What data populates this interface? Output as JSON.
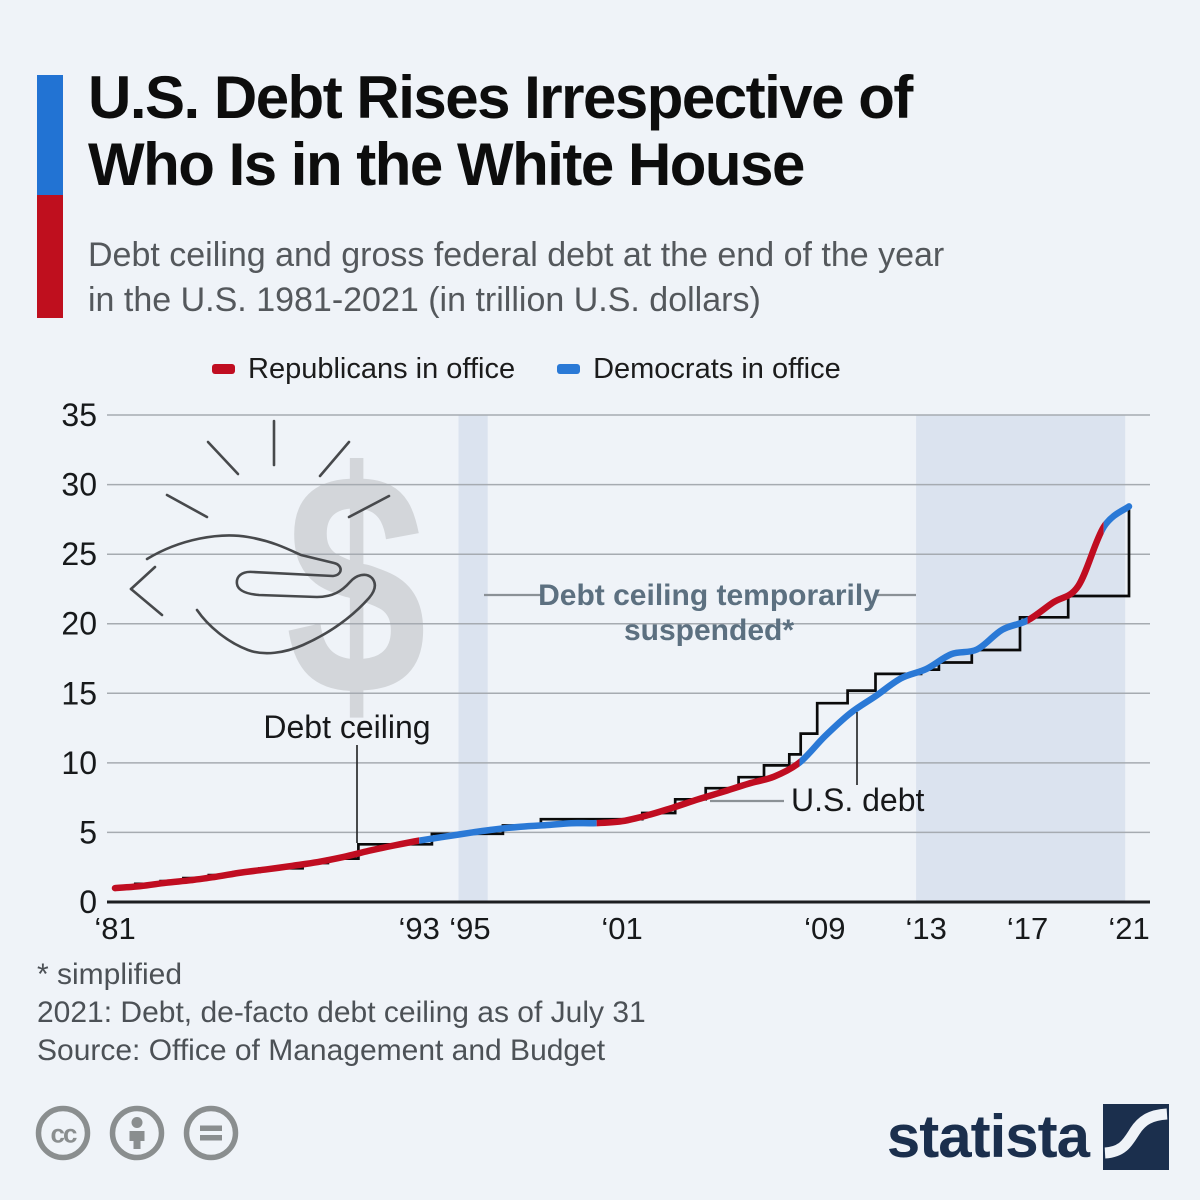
{
  "header": {
    "title_line1": "U.S. Debt Rises Irrespective of",
    "title_line2": "Who Is in the White House",
    "subtitle_line1": "Debt ceiling and gross federal debt at the end of the year",
    "subtitle_line2": "in the U.S. 1981-2021 (in trillion U.S. dollars)",
    "accent_blue": "#2273d3",
    "accent_red": "#bf0f1e"
  },
  "legend": {
    "items": [
      {
        "label": "Republicans in office",
        "color": "#c00d21"
      },
      {
        "label": "Democrats in office",
        "color": "#2a79d6"
      }
    ]
  },
  "chart_data": {
    "type": "line",
    "title": "Debt ceiling and gross federal debt at the end of the year in the U.S. 1981-2021",
    "unit": "trillion U.S. dollars",
    "ylim": [
      0,
      35
    ],
    "y_ticks": [
      0,
      5,
      10,
      15,
      20,
      25,
      30,
      35
    ],
    "x_ticks": [
      {
        "year": 1981,
        "label": "‘81"
      },
      {
        "year": 1993,
        "label": "‘93"
      },
      {
        "year": 1995,
        "label": "‘95"
      },
      {
        "year": 2001,
        "label": "‘01"
      },
      {
        "year": 2009,
        "label": "‘09"
      },
      {
        "year": 2013,
        "label": "‘13"
      },
      {
        "year": 2017,
        "label": "‘17"
      },
      {
        "year": 2021,
        "label": "‘21"
      }
    ],
    "grid": true,
    "colors": {
      "republican": "#c00d21",
      "democrat": "#2a79d6",
      "ceiling_line": "#0a0a0a",
      "band": "#dbe3ef",
      "gridline": "#a6abb1",
      "axis": "#1c1e21",
      "tick_label": "#17191b",
      "watermark": "#d3d6da",
      "icon_stroke": "#47494c",
      "leader_gray": "#8b9196",
      "leader_dark": "#2a2c2e",
      "suspended_label": "#5c7080"
    },
    "series": [
      {
        "name": "U.S. debt",
        "years": [
          1981,
          1982,
          1983,
          1984,
          1985,
          1986,
          1987,
          1988,
          1989,
          1990,
          1991,
          1992,
          1993,
          1994,
          1995,
          1996,
          1997,
          1998,
          1999,
          2000,
          2001,
          2002,
          2003,
          2004,
          2005,
          2006,
          2007,
          2008,
          2009,
          2010,
          2011,
          2012,
          2013,
          2014,
          2015,
          2016,
          2017,
          2018,
          2019,
          2020,
          2021
        ],
        "values": [
          1.0,
          1.14,
          1.38,
          1.57,
          1.82,
          2.12,
          2.35,
          2.6,
          2.87,
          3.23,
          3.67,
          4.06,
          4.41,
          4.69,
          4.97,
          5.22,
          5.41,
          5.53,
          5.66,
          5.67,
          5.81,
          6.23,
          6.78,
          7.38,
          7.93,
          8.51,
          9.01,
          10.02,
          11.91,
          13.56,
          14.79,
          16.07,
          16.74,
          17.82,
          18.15,
          19.57,
          20.24,
          21.52,
          22.72,
          26.95,
          28.43
        ]
      },
      {
        "name": "Debt ceiling",
        "style": "step",
        "steps": [
          [
            1981.0,
            1.08
          ],
          [
            1981.8,
            1.3
          ],
          [
            1982.8,
            1.5
          ],
          [
            1983.7,
            1.72
          ],
          [
            1984.7,
            1.93
          ],
          [
            1985.7,
            2.16
          ],
          [
            1986.7,
            2.42
          ],
          [
            1988.4,
            2.8
          ],
          [
            1989.4,
            3.12
          ],
          [
            1990.6,
            4.15
          ],
          [
            1993.5,
            4.9
          ],
          [
            1996.3,
            5.5
          ],
          [
            1997.8,
            5.95
          ],
          [
            2001.8,
            6.4
          ],
          [
            2003.1,
            7.38
          ],
          [
            2004.3,
            8.18
          ],
          [
            2005.6,
            8.97
          ],
          [
            2006.6,
            9.82
          ],
          [
            2007.6,
            10.61
          ],
          [
            2008.05,
            12.1
          ],
          [
            2008.7,
            14.29
          ],
          [
            2009.9,
            15.19
          ],
          [
            2011.0,
            16.39
          ],
          [
            2012.8,
            16.7
          ],
          [
            2013.5,
            17.21
          ],
          [
            2014.8,
            18.11
          ],
          [
            2016.7,
            20.46
          ],
          [
            2018.6,
            21.99
          ],
          [
            2021.0,
            28.43
          ]
        ]
      }
    ],
    "party_segments": [
      {
        "party": "Republicans",
        "from": 1981,
        "to": 1993
      },
      {
        "party": "Democrats",
        "from": 1993,
        "to": 2000
      },
      {
        "party": "Republicans",
        "from": 2000,
        "to": 2008
      },
      {
        "party": "Democrats",
        "from": 2008,
        "to": 2017
      },
      {
        "party": "Republicans",
        "from": 2017,
        "to": 2020
      },
      {
        "party": "Democrats",
        "from": 2020,
        "to": 2021
      }
    ],
    "suspension_bands": [
      {
        "from": 1994.55,
        "to": 1995.7
      },
      {
        "from": 2012.6,
        "to": 2020.85
      }
    ],
    "legend_position": "top"
  },
  "annotations": {
    "debt_ceiling_label": "Debt ceiling",
    "us_debt_label": "U.S. debt",
    "suspended_line1": "Debt ceiling temporarily",
    "suspended_line2": "suspended*"
  },
  "footnotes": {
    "line1": "* simplified",
    "line2": "2021: Debt, de-facto debt ceiling as of July 31",
    "line3": "Source: Office of Management and Budget"
  },
  "branding": {
    "logo_text": "statista",
    "logo_color": "#1b2f4d"
  }
}
